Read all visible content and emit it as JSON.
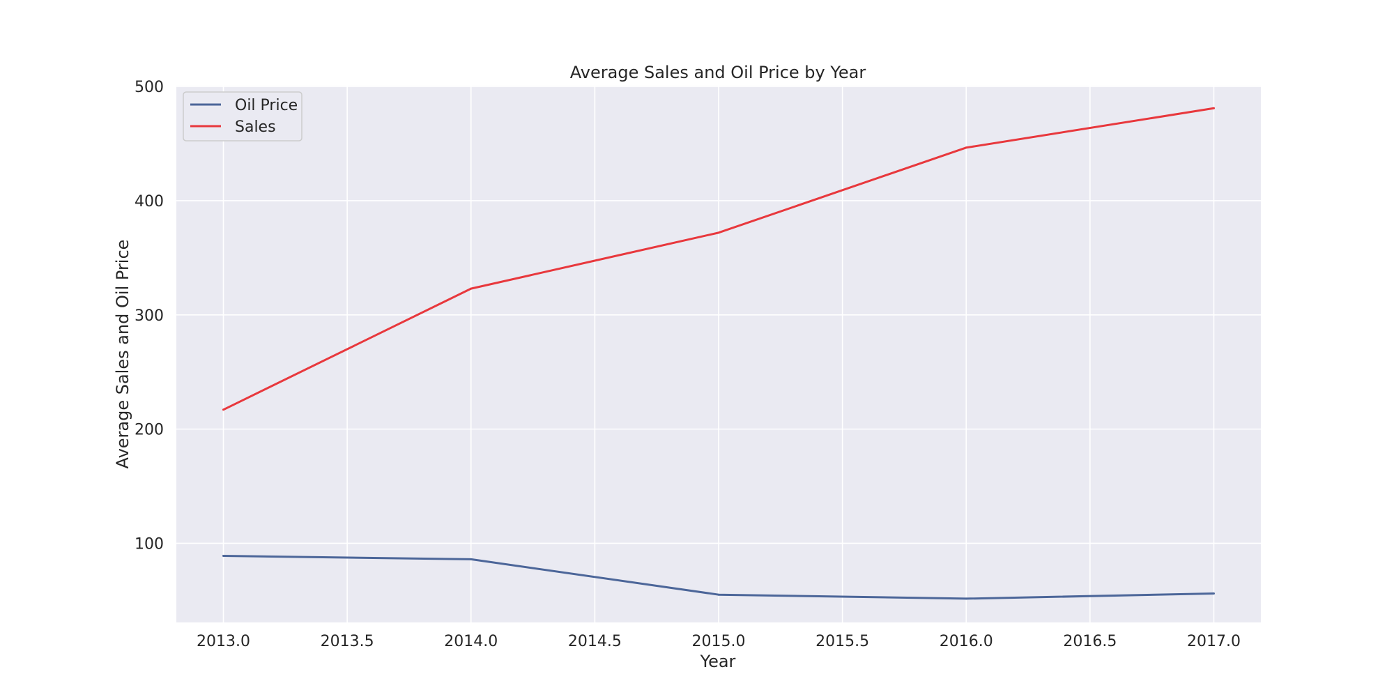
{
  "chart_data": {
    "type": "line",
    "title": "Average Sales and Oil Price by Year",
    "xlabel": "Year",
    "ylabel": "Average Sales and Oil Price",
    "x": [
      2013,
      2014,
      2015,
      2016,
      2017
    ],
    "x_ticks": [
      2013.0,
      2013.5,
      2014.0,
      2014.5,
      2015.0,
      2015.5,
      2016.0,
      2016.5,
      2017.0
    ],
    "x_tick_labels": [
      "2013.0",
      "2013.5",
      "2014.0",
      "2014.5",
      "2015.0",
      "2015.5",
      "2016.0",
      "2016.5",
      "2017.0"
    ],
    "y_ticks": [
      100,
      200,
      300,
      400,
      500
    ],
    "y_tick_labels": [
      "100",
      "200",
      "300",
      "400",
      "500"
    ],
    "xlim": [
      2012.81,
      2017.19
    ],
    "ylim": [
      30.7,
      500.7
    ],
    "grid": true,
    "legend_position": "upper-left",
    "series": [
      {
        "name": "Oil Price",
        "color": "#4c6699",
        "values": [
          89.0,
          86.0,
          55.0,
          51.5,
          56.0
        ]
      },
      {
        "name": "Sales",
        "color": "#e8383d",
        "values": [
          217.0,
          323.0,
          372.0,
          446.5,
          481.0
        ]
      }
    ]
  }
}
